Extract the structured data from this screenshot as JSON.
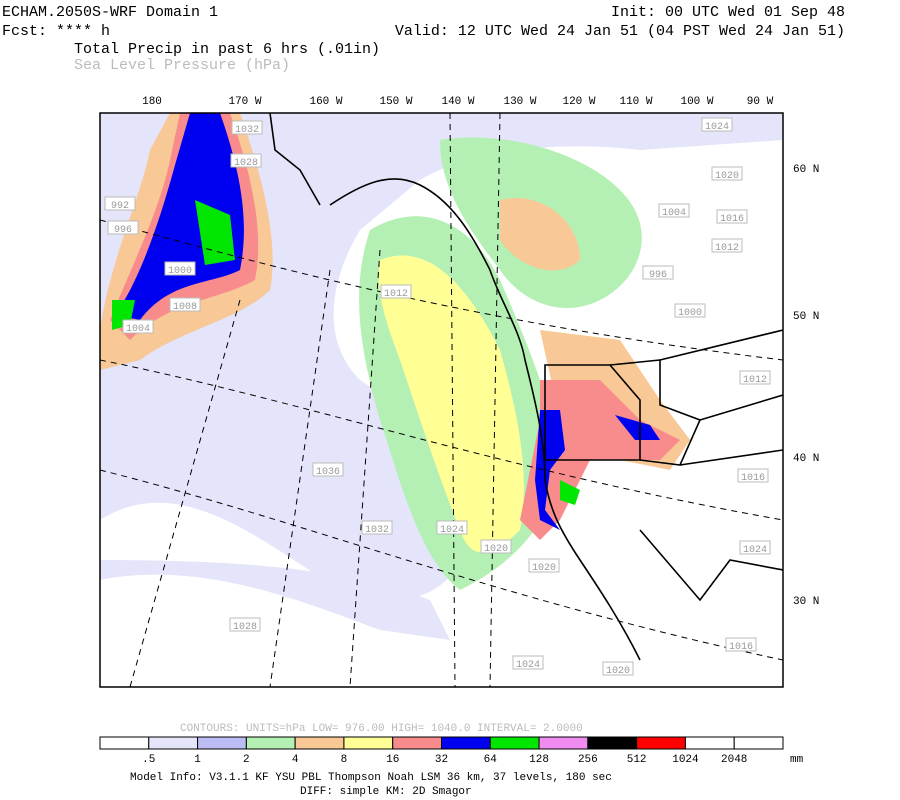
{
  "header": {
    "title": "ECHAM.2050S-WRF Domain 1",
    "init": "Init: 00 UTC Wed 01 Sep 48",
    "forecast": "Fcst: **** h",
    "valid": "Valid: 12 UTC Wed 24 Jan 51 (04 PST Wed 24 Jan 51)",
    "field": "Total Precip in past 6 hrs (.01in)",
    "overlay": "Sea Level Pressure (hPa)"
  },
  "map": {
    "longitude_labels": [
      "180",
      "170 W",
      "160 W",
      "150 W",
      "140 W",
      "130 W",
      "120 W",
      "110 W",
      "100 W",
      "90 W"
    ],
    "latitude_labels": [
      "60 N",
      "50 N",
      "40 N",
      "30 N"
    ],
    "pressure_labels": [
      "1032",
      "1024",
      "1028",
      "1020",
      "992",
      "996",
      "1004",
      "1016",
      "1012",
      "996",
      "1000",
      "1008",
      "1000",
      "1004",
      "1012",
      "1036",
      "1032",
      "1024",
      "1020",
      "1020",
      "1012",
      "1016",
      "1024",
      "1028",
      "1024",
      "1020",
      "1016"
    ]
  },
  "contour_info": "CONTOURS:  UNITS=hPa  LOW=  976.00     HIGH=  1040.0     INTERVAL=   2.0000",
  "legend": {
    "colors": [
      "#ffffff",
      "#e4e4fa",
      "#bcbcf4",
      "#b4f0b4",
      "#f8c896",
      "#ffff96",
      "#f88c8c",
      "#0000f0",
      "#00e600",
      "#f08cf0",
      "#000000",
      "#ff0000",
      "#ffffff",
      "#ffffff"
    ],
    "labels": [
      ".5",
      "1",
      "2",
      "4",
      "8",
      "16",
      "32",
      "64",
      "128",
      "256",
      "512",
      "1024",
      "2048"
    ],
    "unit": "mm"
  },
  "footer": [
    "Model Info: V3.1.1    KF      YSU PBL   Thompson     Noah LSM   36 km,    37 levels,   180 sec",
    "DIFF: simple  KM: 2D Smagor"
  ]
}
